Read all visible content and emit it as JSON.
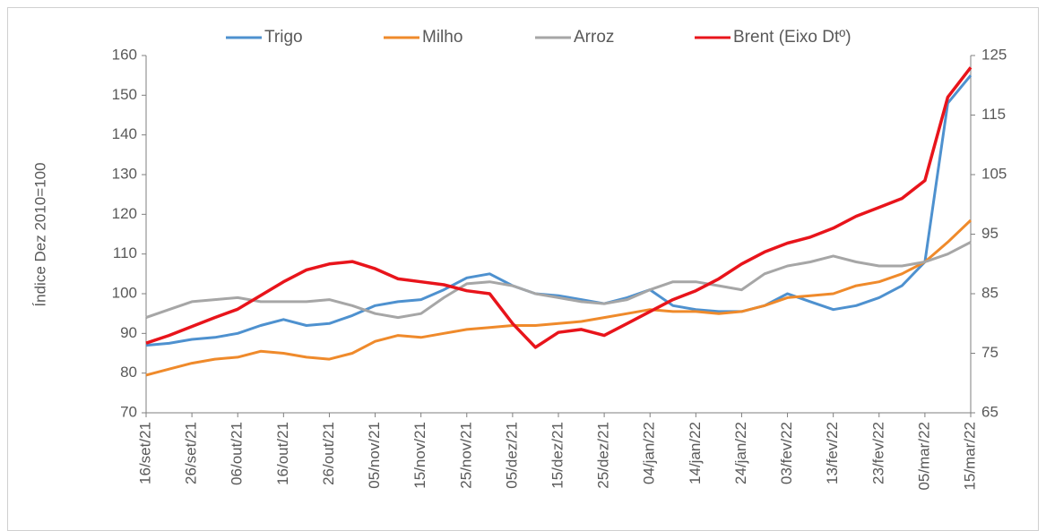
{
  "chart_data": {
    "type": "line",
    "y_label": "Índice Dez 2010=100",
    "x": [
      "16/set/21",
      null,
      "26/set/21",
      null,
      "06/out/21",
      null,
      "16/out/21",
      null,
      "26/out/21",
      null,
      "05/nov/21",
      null,
      "15/nov/21",
      null,
      "25/nov/21",
      null,
      "05/dez/21",
      null,
      "15/dez/21",
      null,
      "25/dez/21",
      null,
      "04/jan/22",
      null,
      "14/jan/22",
      null,
      "24/jan/22",
      null,
      "03/fev/22",
      null,
      "13/fev/22",
      null,
      "23/fev/22",
      null,
      "05/mar/22",
      null,
      "15/mar/22"
    ],
    "series": [
      {
        "name": "Trigo",
        "color": "#4e91cf",
        "values": [
          87,
          87.5,
          88.5,
          89,
          90,
          92,
          93.5,
          92,
          92.5,
          94.5,
          97,
          98,
          98.5,
          101,
          104,
          105,
          102,
          100,
          99.5,
          98.5,
          97.5,
          99,
          101,
          97,
          96,
          95.5,
          95.5,
          97,
          100,
          98,
          96,
          97,
          99,
          102,
          108,
          148,
          155
        ]
      },
      {
        "name": "Milho",
        "color": "#ef8a2b",
        "values": [
          79.5,
          81,
          82.5,
          83.5,
          84,
          85.5,
          85,
          84,
          83.5,
          85,
          88,
          89.5,
          89,
          90,
          91,
          91.5,
          92,
          92,
          92.5,
          93,
          94,
          95,
          96,
          95.5,
          95.5,
          95,
          95.5,
          97,
          99,
          99.5,
          100,
          102,
          103,
          105,
          108,
          113,
          118.5
        ]
      },
      {
        "name": "Arroz",
        "color": "#a6a6a6",
        "values": [
          94,
          96,
          98,
          98.5,
          99,
          98,
          98,
          98,
          98.5,
          97,
          95,
          94,
          95,
          99,
          102.5,
          103,
          102,
          100,
          99,
          98,
          97.5,
          98.5,
          101,
          103,
          103,
          102,
          101,
          105,
          107,
          108,
          109.5,
          108,
          107,
          107,
          108,
          110,
          113
        ]
      },
      {
        "name": "Brent (Eixo Dtº)",
        "color": "#e8141b",
        "axis": "y2",
        "values": [
          76.7,
          78,
          79.5,
          81,
          82.4,
          84.7,
          87,
          89,
          90,
          90.4,
          89.2,
          87.5,
          87,
          86.5,
          85.5,
          85,
          80,
          76,
          78.5,
          79,
          78,
          80,
          82,
          84,
          85.5,
          87.5,
          90,
          92,
          93.5,
          94.5,
          96,
          98,
          99.5,
          101,
          104,
          118,
          123
        ]
      }
    ],
    "ylim": [
      70,
      160
    ],
    "yticks": [
      70,
      80,
      90,
      100,
      110,
      120,
      130,
      140,
      150,
      160
    ],
    "y2lim": [
      65,
      125
    ],
    "y2ticks": [
      65,
      75,
      85,
      95,
      105,
      115,
      125
    ],
    "legend": "top"
  }
}
